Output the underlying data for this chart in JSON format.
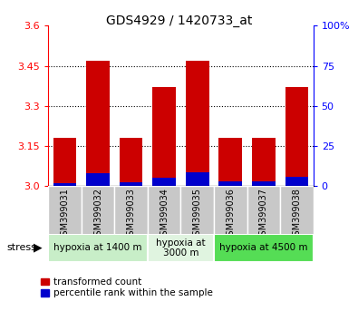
{
  "title": "GDS4929 / 1420733_at",
  "samples": [
    "GSM399031",
    "GSM399032",
    "GSM399033",
    "GSM399034",
    "GSM399035",
    "GSM399036",
    "GSM399037",
    "GSM399038"
  ],
  "red_values": [
    3.18,
    3.47,
    3.18,
    3.37,
    3.47,
    3.18,
    3.18,
    3.37
  ],
  "blue_values_pct": [
    2.0,
    8.0,
    2.5,
    5.0,
    8.5,
    3.0,
    3.0,
    6.0
  ],
  "ymin": 3.0,
  "ymax": 3.6,
  "y_ticks_left": [
    3.0,
    3.15,
    3.3,
    3.45,
    3.6
  ],
  "y_ticks_right": [
    0,
    25,
    50,
    75,
    100
  ],
  "bar_width": 0.7,
  "red_color": "#cc0000",
  "blue_color": "#0000cc",
  "groups": [
    {
      "label": "hypoxia at 1400 m",
      "start": 0,
      "end": 2,
      "color": "#c8eec8"
    },
    {
      "label": "hypoxia at\n3000 m",
      "start": 3,
      "end": 4,
      "color": "#e0f4e0"
    },
    {
      "label": "hypoxia at 4500 m",
      "start": 5,
      "end": 7,
      "color": "#55dd55"
    }
  ],
  "sample_box_color": "#c8c8c8",
  "legend_red": "transformed count",
  "legend_blue": "percentile rank within the sample"
}
